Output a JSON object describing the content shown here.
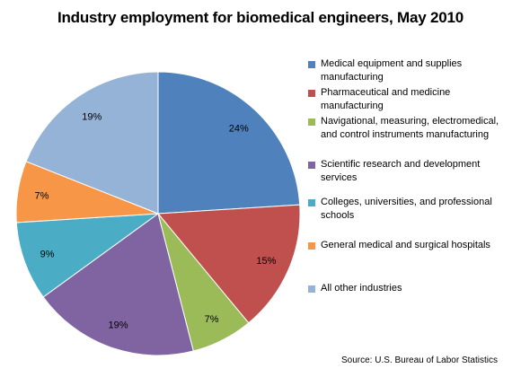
{
  "chart_data": {
    "type": "pie",
    "title": "Industry employment for biomedical engineers, May 2010",
    "source": "Source: U.S. Bureau of Labor Statistics",
    "legend_position": "right",
    "slices": [
      {
        "label": "Medical equipment and supplies manufacturing",
        "value": 24,
        "display": "24%",
        "color": "#4F81BD"
      },
      {
        "label": "Pharmaceutical and medicine manufacturing",
        "value": 15,
        "display": "15%",
        "color": "#C0504D"
      },
      {
        "label": "Navigational, measuring, electromedical, and control instruments manufacturing",
        "value": 7,
        "display": "7%",
        "color": "#9BBB59"
      },
      {
        "label": "Scientific research and development services",
        "value": 19,
        "display": "19%",
        "color": "#8064A2"
      },
      {
        "label": "Colleges, universities, and professional schools",
        "value": 9,
        "display": "9%",
        "color": "#4BACC6"
      },
      {
        "label": "General medical and surgical hospitals",
        "value": 7,
        "display": "7%",
        "color": "#F79646"
      },
      {
        "label": "All other industries",
        "value": 19,
        "display": "19%",
        "color": "#95B3D7"
      }
    ]
  }
}
